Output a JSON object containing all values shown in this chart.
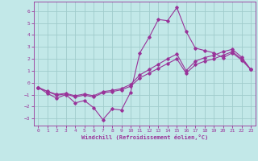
{
  "xlabel": "Windchill (Refroidissement éolien,°C)",
  "x_ticks": [
    0,
    1,
    2,
    3,
    4,
    5,
    6,
    7,
    8,
    9,
    10,
    11,
    12,
    13,
    14,
    15,
    16,
    17,
    18,
    19,
    20,
    21,
    22,
    23
  ],
  "y_ticks": [
    -3,
    -2,
    -1,
    0,
    1,
    2,
    3,
    4,
    5,
    6
  ],
  "xlim": [
    -0.5,
    23.5
  ],
  "ylim": [
    -3.6,
    6.8
  ],
  "background_color": "#c2e8e8",
  "grid_color": "#a0cccc",
  "line_color": "#993399",
  "line1_y": [
    -0.4,
    -0.9,
    -1.3,
    -1.0,
    -1.7,
    -1.5,
    -2.1,
    -3.1,
    -2.2,
    -2.3,
    -0.8,
    2.5,
    3.8,
    5.3,
    5.2,
    6.3,
    4.3,
    2.9,
    2.7,
    2.5,
    2.1,
    2.5,
    1.9,
    1.1
  ],
  "line2_y": [
    -0.4,
    -0.75,
    -1.05,
    -0.95,
    -1.2,
    -1.05,
    -1.2,
    -0.85,
    -0.75,
    -0.6,
    -0.3,
    0.4,
    0.8,
    1.2,
    1.6,
    2.0,
    0.8,
    1.5,
    1.8,
    2.0,
    2.3,
    2.6,
    2.0,
    1.1
  ],
  "line3_y": [
    -0.4,
    -0.72,
    -0.98,
    -0.9,
    -1.1,
    -0.95,
    -1.1,
    -0.75,
    -0.65,
    -0.5,
    -0.15,
    0.65,
    1.1,
    1.55,
    2.0,
    2.4,
    1.0,
    1.8,
    2.1,
    2.3,
    2.6,
    2.8,
    2.15,
    1.1
  ]
}
